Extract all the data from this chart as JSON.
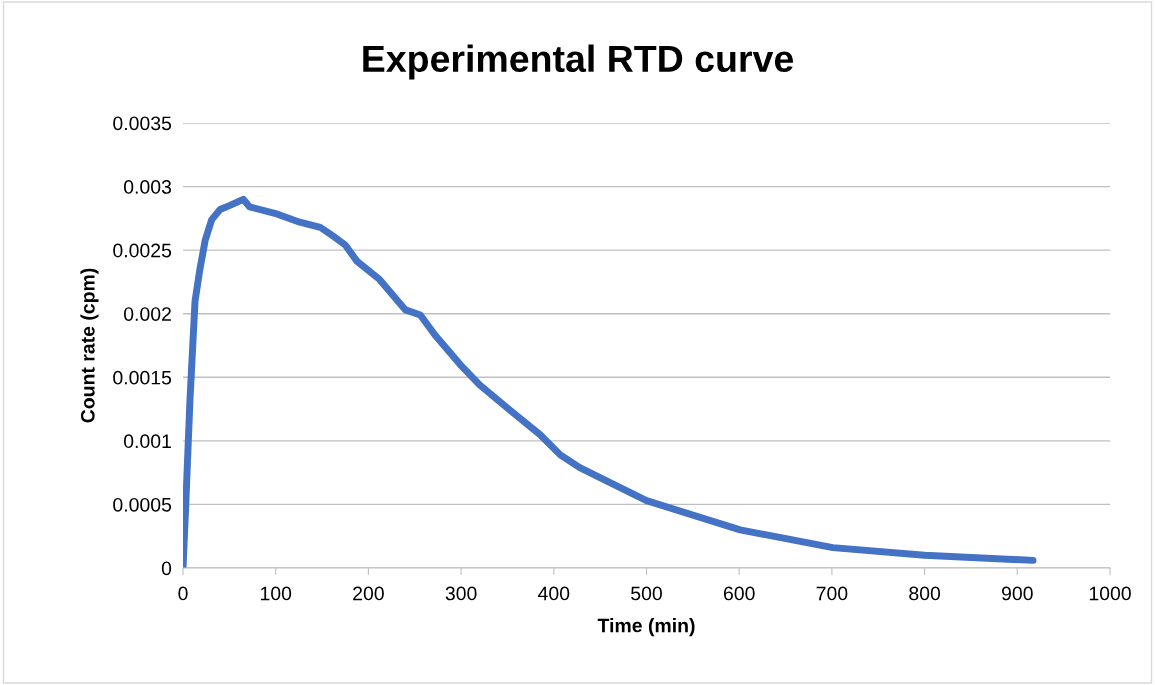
{
  "chart_data": {
    "type": "line",
    "title": "Experimental RTD curve",
    "xlabel": "Time (min)",
    "ylabel": "Count rate (cpm)",
    "x": [
      0,
      3,
      7.5,
      13,
      18,
      24,
      31,
      40,
      50,
      65,
      72,
      99,
      126,
      148,
      164,
      175,
      188,
      212,
      240,
      256,
      272,
      299,
      320,
      353,
      385,
      407,
      428,
      500,
      601,
      701,
      800,
      917
    ],
    "series": [
      {
        "color": "#4472c4",
        "values": [
          0,
          0.0005,
          0.00132,
          0.0021,
          0.00234,
          0.00258,
          0.00274,
          0.00282,
          0.00285,
          0.0029,
          0.00284,
          0.00279,
          0.00272,
          0.00268,
          0.0026,
          0.00254,
          0.00241,
          0.00227,
          0.00203,
          0.00199,
          0.00183,
          0.0016,
          0.00144,
          0.00124,
          0.00105,
          0.00089,
          0.00079,
          0.00053,
          0.0003,
          0.00016,
          0.0001,
          6e-05
        ]
      }
    ],
    "xlim": [
      0,
      1000
    ],
    "xticks": [
      0,
      100,
      200,
      300,
      400,
      500,
      600,
      700,
      800,
      900,
      1000
    ],
    "ylim": [
      0,
      0.0035
    ],
    "yticks": [
      0,
      0.0005,
      0.001,
      0.0015,
      0.002,
      0.0025,
      0.003,
      0.0035
    ],
    "grid": "y",
    "legend": false,
    "marker": "none",
    "line_style": "solid"
  }
}
